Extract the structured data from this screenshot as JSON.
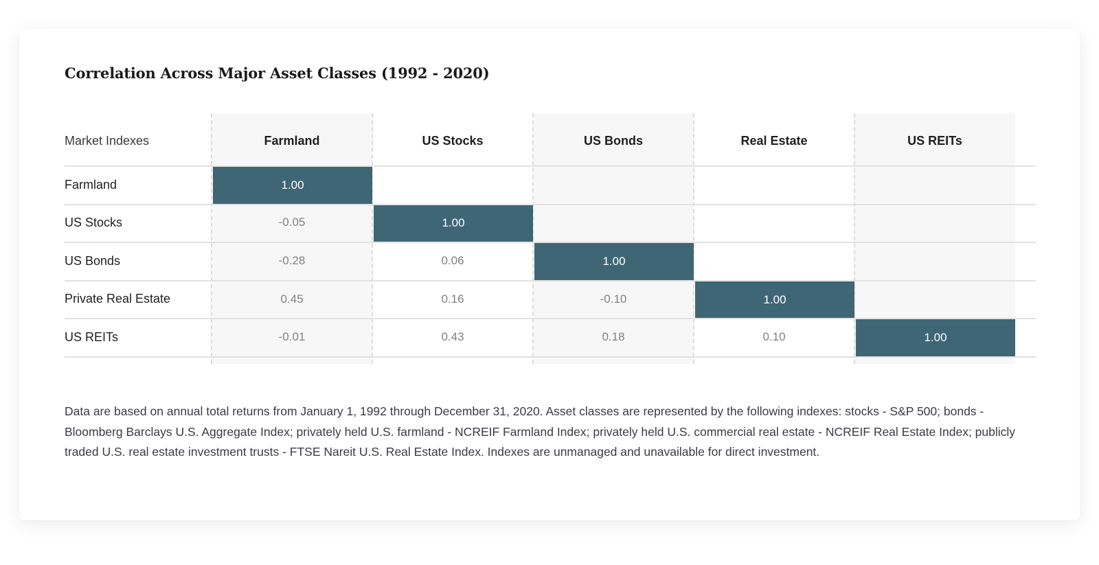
{
  "title": "Correlation Across Major Asset Classes (1992 - 2020)",
  "chart_data": {
    "type": "table",
    "corner_label": "Market Indexes",
    "columns": [
      "Farmland",
      "US Stocks",
      "US Bonds",
      "Real Estate",
      "US REITs"
    ],
    "rows": [
      {
        "label": "Farmland",
        "values": [
          "1.00",
          "",
          "",
          "",
          ""
        ]
      },
      {
        "label": "US Stocks",
        "values": [
          "-0.05",
          "1.00",
          "",
          "",
          ""
        ]
      },
      {
        "label": "US Bonds",
        "values": [
          "-0.28",
          "0.06",
          "1.00",
          "",
          ""
        ]
      },
      {
        "label": "Private Real Estate",
        "values": [
          "0.45",
          "0.16",
          "-0.10",
          "1.00",
          ""
        ]
      },
      {
        "label": "US REITs",
        "values": [
          "-0.01",
          "0.43",
          "0.18",
          "0.10",
          "1.00"
        ]
      }
    ],
    "diagonal_color": "#3f6675"
  },
  "footnote": "Data are based on annual total returns from January 1, 1992 through December 31, 2020. Asset classes are represented by the following indexes: stocks - S&P 500; bonds - Bloomberg Barclays U.S. Aggregate Index; privately held U.S. farmland - NCREIF Farmland Index; privately held U.S. commercial real estate - NCREIF Real Estate Index; publicly traded U.S. real estate investment trusts - FTSE Nareit U.S. Real Estate Index. Indexes are unmanaged and unavailable for direct investment."
}
